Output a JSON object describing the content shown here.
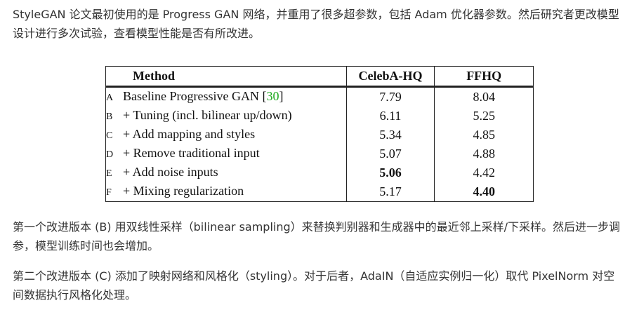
{
  "paragraphs": {
    "intro": "StyleGAN 论文最初使用的是 Progress GAN 网络，并重用了很多超参数，包括 Adam 优化器参数。然后研究者更改模型设计进行多次试验，查看模型性能是否有所改进。",
    "version_b": "第一个改进版本 (B) 用双线性采样（bilinear sampling）来替换判别器和生成器中的最近邻上采样/下采样。然后进一步调参，模型训练时间也会增加。",
    "version_c": "第二个改进版本 (C) 添加了映射网络和风格化（styling）。对于后者，AdaIN（自适应实例归一化）取代 PixelNorm 对空间数据执行风格化处理。"
  },
  "table": {
    "headers": {
      "method": "Method",
      "celeba": "CelebA-HQ",
      "ffhq": "FFHQ"
    },
    "rows": [
      {
        "letter": "A",
        "method": "Baseline Progressive GAN [",
        "ref": "30",
        "method_end": "]",
        "celeba": "7.79",
        "ffhq": "8.04"
      },
      {
        "letter": "B",
        "method": "+ Tuning (incl. bilinear up/down)",
        "ref": "",
        "method_end": "",
        "celeba": "6.11",
        "ffhq": "5.25"
      },
      {
        "letter": "C",
        "method": "+ Add mapping and styles",
        "ref": "",
        "method_end": "",
        "celeba": "5.34",
        "ffhq": "4.85"
      },
      {
        "letter": "D",
        "method": "+ Remove traditional input",
        "ref": "",
        "method_end": "",
        "celeba": "5.07",
        "ffhq": "4.88"
      },
      {
        "letter": "E",
        "method": "+ Add noise inputs",
        "ref": "",
        "method_end": "",
        "celeba": "5.06",
        "ffhq": "4.42"
      },
      {
        "letter": "F",
        "method": "+ Mixing regularization",
        "ref": "",
        "method_end": "",
        "celeba": "5.17",
        "ffhq": "4.40"
      }
    ],
    "bold_cells": [
      "E.celeba",
      "F.ffhq"
    ],
    "ref_color": "#22aa22"
  }
}
